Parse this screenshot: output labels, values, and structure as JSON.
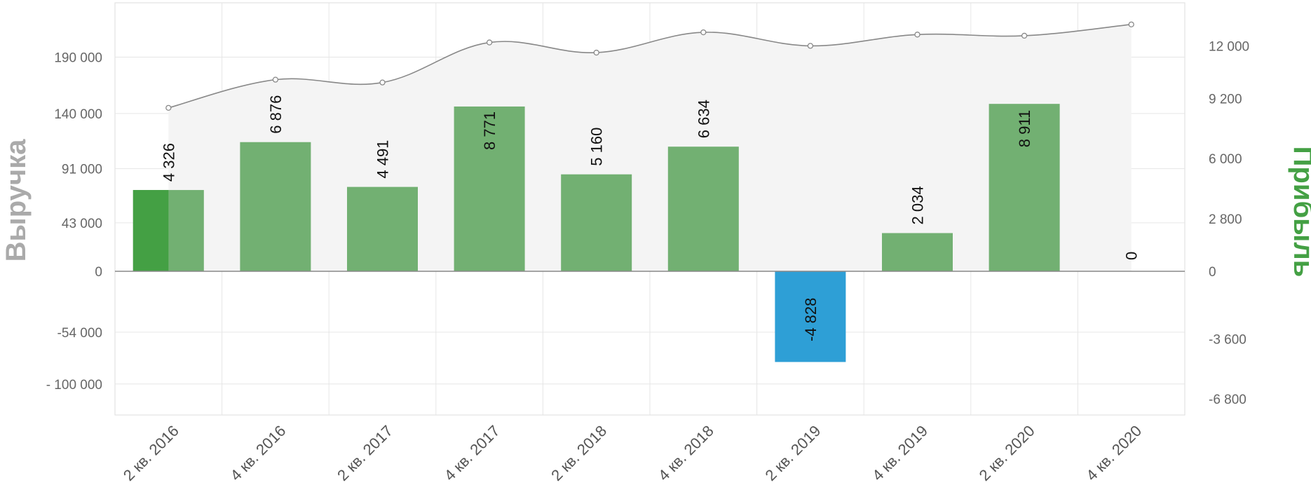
{
  "chart_data": {
    "type": "bar",
    "categories": [
      "2 кв. 2016",
      "4 кв. 2016",
      "2 кв. 2017",
      "4 кв. 2017",
      "2 кв. 2018",
      "4 кв. 2018",
      "2 кв. 2019",
      "4 кв. 2019",
      "2 кв. 2020",
      "4 кв. 2020"
    ],
    "series": [
      {
        "name": "Прибыль",
        "type": "bar",
        "axis": "right",
        "values": [
          4326,
          6876,
          4491,
          8771,
          5160,
          6634,
          -4828,
          2034,
          8911,
          0
        ],
        "data_labels": [
          "4 326",
          "6 876",
          "4 491",
          "8 771",
          "5 160",
          "6 634",
          "-4 828",
          "2 034",
          "8 911",
          "0"
        ],
        "color": "#72b072",
        "negative_color": "#2e9fd6",
        "highlight_color": "#44a044"
      },
      {
        "name": "Выручка",
        "type": "area",
        "axis": "left",
        "values": [
          145000,
          170000,
          167500,
          203000,
          194000,
          212000,
          200000,
          210000,
          209000,
          219000
        ],
        "color": "#888888",
        "fill": "#f4f4f4"
      }
    ],
    "y_left": {
      "label": "Выручка",
      "label_color": "#aaaaaa",
      "ticks": [
        {
          "value": 190000,
          "label": "190 000"
        },
        {
          "value": 140000,
          "label": "140 000"
        },
        {
          "value": 91000,
          "label": "91 000"
        },
        {
          "value": 43000,
          "label": "43 000"
        },
        {
          "value": 0,
          "label": "0"
        },
        {
          "value": -54000,
          "label": "-54 000"
        },
        {
          "value": -100000,
          "label": "- 100 000"
        }
      ]
    },
    "y_right": {
      "label": "Прибыль",
      "label_color": "#44a044",
      "ticks": [
        {
          "value": 12000,
          "label": "12 000"
        },
        {
          "value": 9200,
          "label": "9 200"
        },
        {
          "value": 6000,
          "label": "6 000"
        },
        {
          "value": 2800,
          "label": "2 800"
        },
        {
          "value": 0,
          "label": "0"
        },
        {
          "value": -3600,
          "label": "-3 600"
        },
        {
          "value": -6800,
          "label": "-6 800"
        }
      ]
    },
    "grid": true,
    "legend": "none"
  }
}
